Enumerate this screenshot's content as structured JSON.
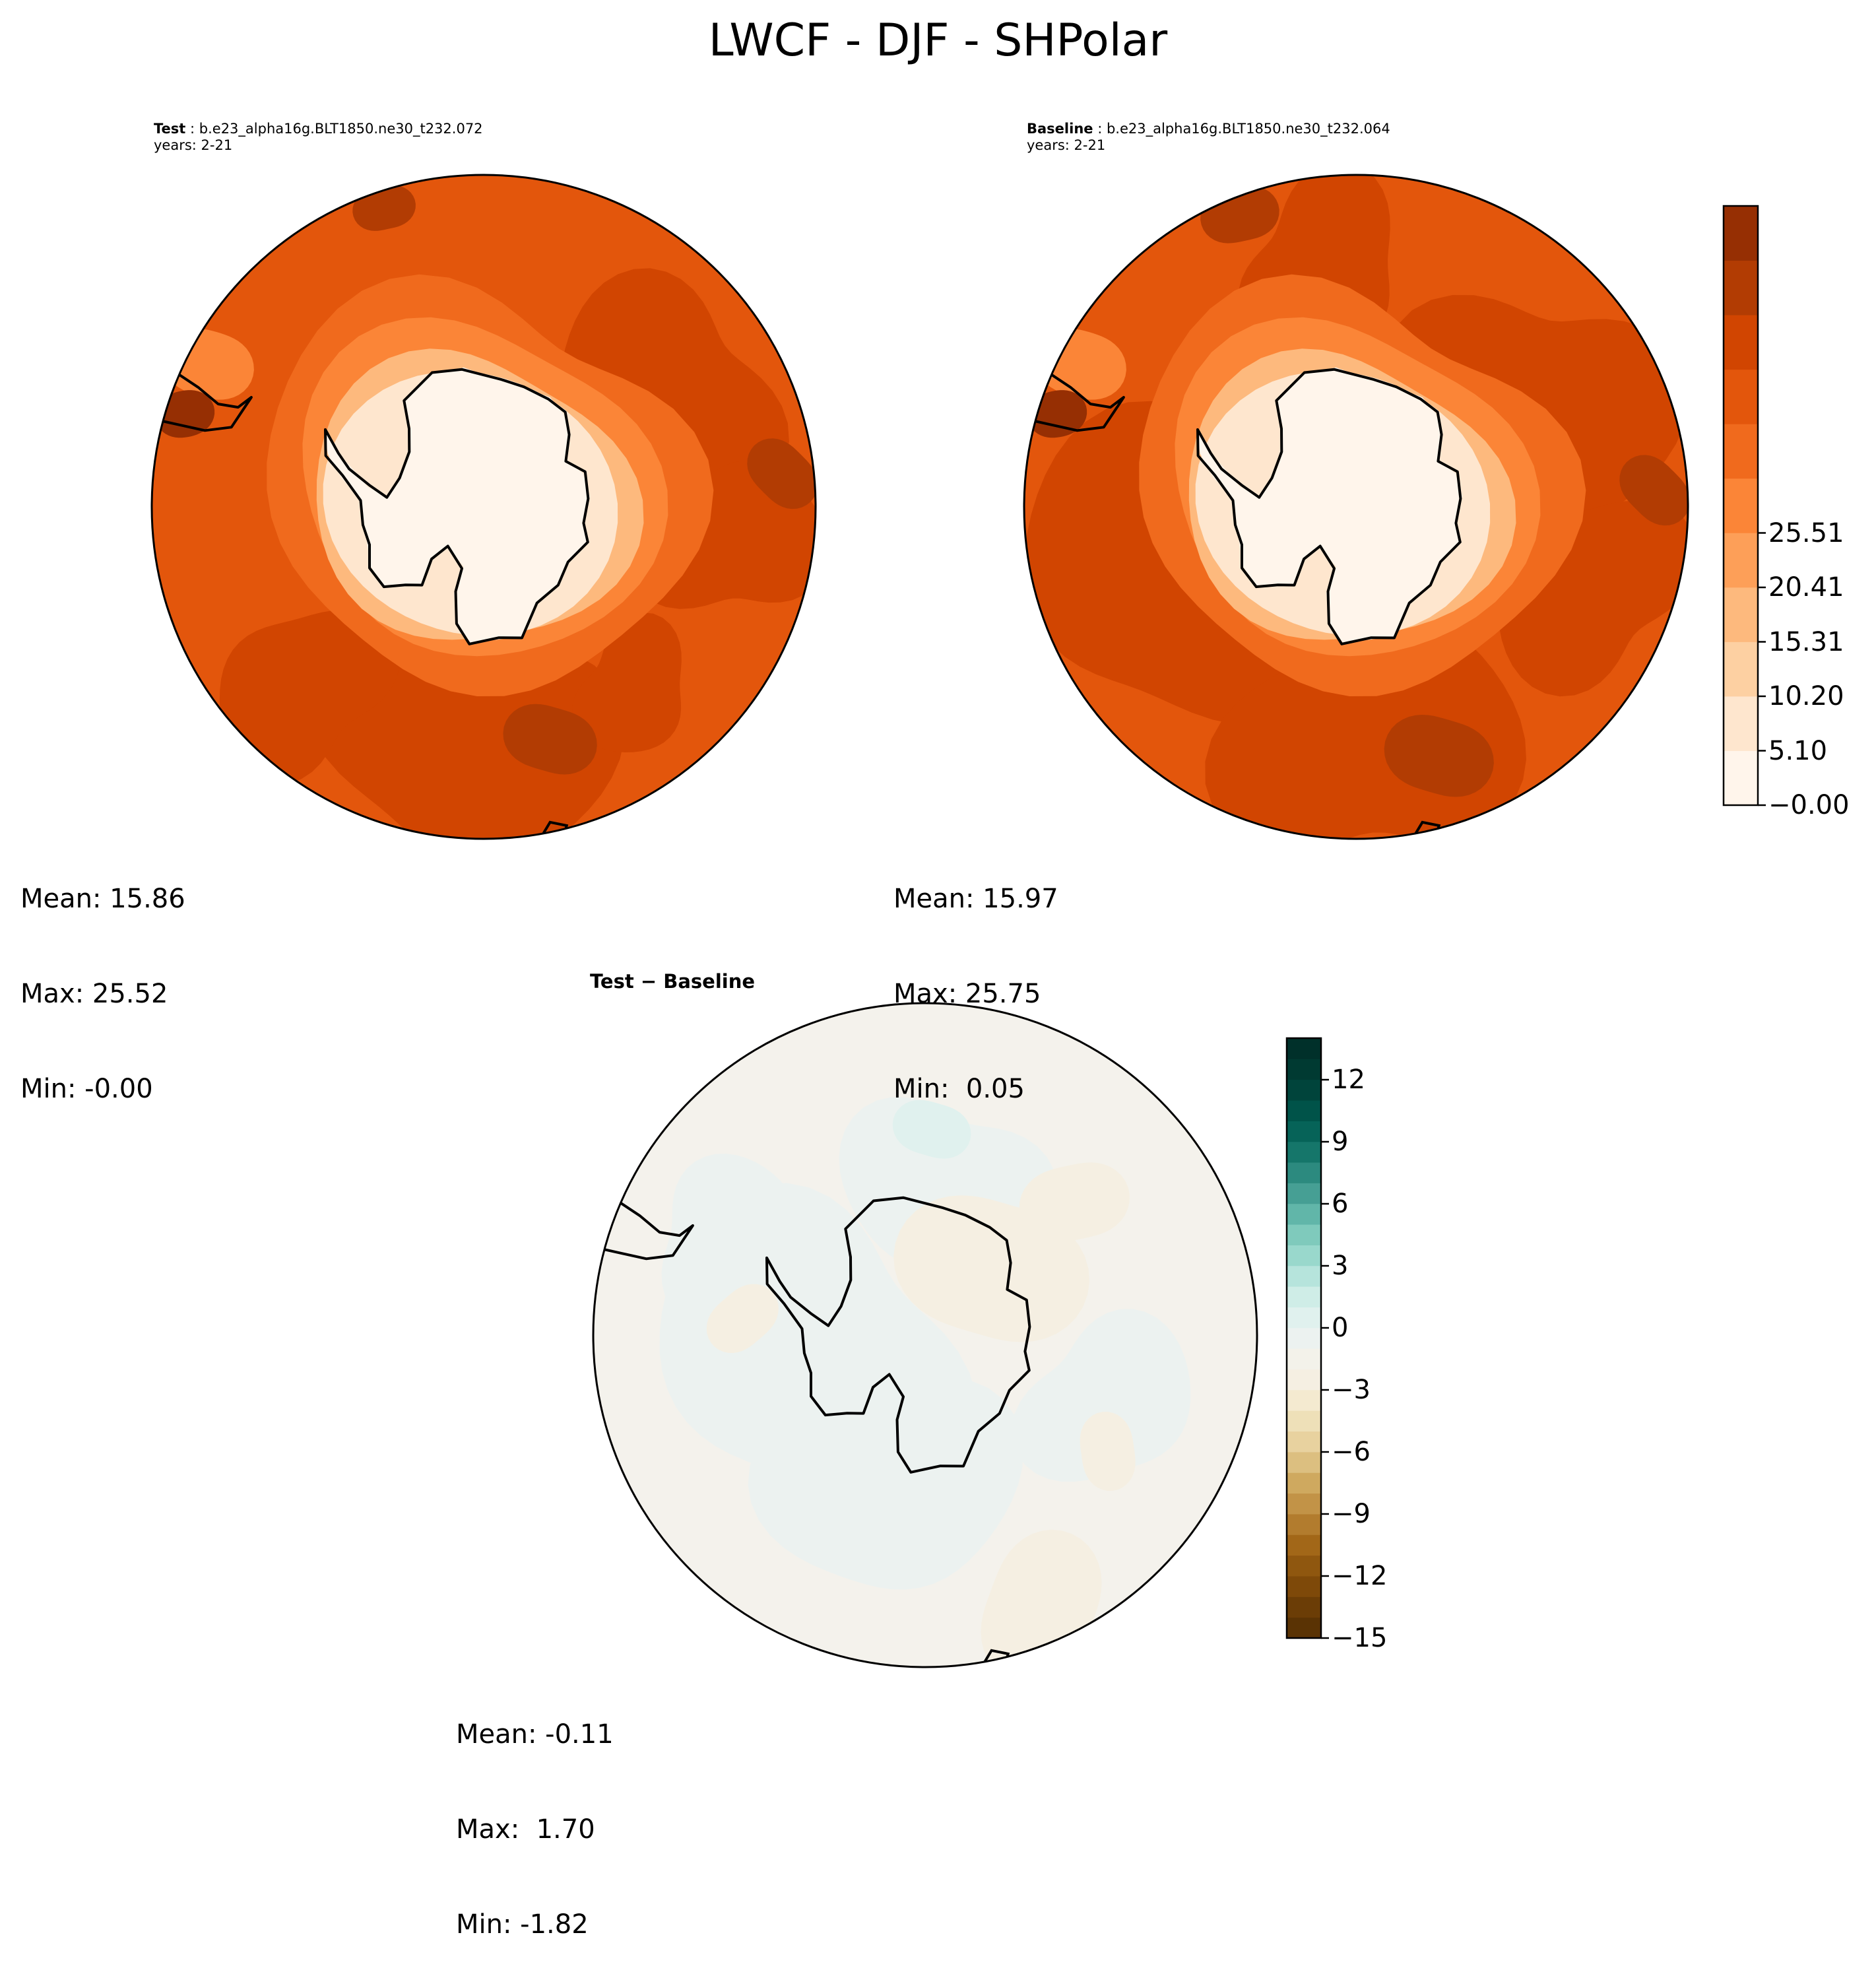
{
  "title": "LWCF - DJF - SHPolar",
  "panels": {
    "test": {
      "case_label": "Test",
      "case_name": "b.e23_alpha16g.BLT1850.ne30_t232.072",
      "years": "years: 2-21",
      "stats": {
        "mean": "Mean: 15.86",
        "max": "Max: 25.52",
        "min": "Min: -0.00"
      }
    },
    "baseline": {
      "case_label": "Baseline",
      "case_name": "b.e23_alpha16g.BLT1850.ne30_t232.064",
      "years": "years: 2-21",
      "stats": {
        "mean": "Mean: 15.97",
        "max": "Max: 25.75",
        "min": "Min:  0.05"
      }
    },
    "diff": {
      "title": "Test − Baseline",
      "stats": {
        "mean": "Mean: -0.11",
        "max": "Max:  1.70",
        "min": "Min: -1.82"
      }
    }
  },
  "chart_data": [
    {
      "type": "heatmap",
      "projection": "south-polar-stereographic",
      "title": "Test",
      "field": "LWCF",
      "season": "DJF",
      "region": "SHPolar",
      "mean": 15.86,
      "max": 25.52,
      "min": -0.0,
      "colormap": "Oranges",
      "colorbar": {
        "ticks": [
          "−0.00",
          "5.10",
          "10.20",
          "15.31",
          "20.41",
          "25.51"
        ],
        "range": [
          0,
          28.06
        ],
        "levels": 11
      }
    },
    {
      "type": "heatmap",
      "projection": "south-polar-stereographic",
      "title": "Baseline",
      "field": "LWCF",
      "season": "DJF",
      "region": "SHPolar",
      "mean": 15.97,
      "max": 25.75,
      "min": 0.05,
      "colormap": "Oranges",
      "colorbar": {
        "ticks": [
          "−0.00",
          "5.10",
          "10.20",
          "15.31",
          "20.41",
          "25.51"
        ],
        "range": [
          0,
          28.06
        ],
        "levels": 11
      }
    },
    {
      "type": "heatmap",
      "projection": "south-polar-stereographic",
      "title": "Test − Baseline",
      "mean": -0.11,
      "max": 1.7,
      "min": -1.82,
      "colormap": "BrBG",
      "colorbar": {
        "ticks": [
          "−15",
          "−12",
          "−9",
          "−6",
          "−3",
          "0",
          "3",
          "6",
          "9",
          "12"
        ],
        "range": [
          -15,
          14
        ],
        "levels": 29
      }
    }
  ],
  "colors": {
    "oranges": [
      "#fff5eb",
      "#fee6ce",
      "#fdd0a2",
      "#fdb97d",
      "#fd9f58",
      "#fb8537",
      "#f06a1d",
      "#e3560c",
      "#d14501",
      "#b23c03",
      "#962f03"
    ],
    "brbg": [
      "#5a3304",
      "#6b3d06",
      "#7e4909",
      "#8f570f",
      "#a26718",
      "#b27c2e",
      "#c29347",
      "#cfa95f",
      "#dcbf80",
      "#e8d29f",
      "#eee0b8",
      "#f4ead0",
      "#f5efe2",
      "#f3f2ea",
      "#ecf2f0",
      "#e0f1ee",
      "#cfede7",
      "#b6e4dc",
      "#99d8cc",
      "#7fcabc",
      "#61b6a9",
      "#469f94",
      "#2c8a7f",
      "#15766a",
      "#066358",
      "#005349",
      "#00443b",
      "#003a32",
      "#00302a"
    ],
    "ocean_test": "#e3560c",
    "ocean_test_dark": "#d14501",
    "land": "#fff5eb",
    "diff_fill": "#f4f2ec"
  }
}
